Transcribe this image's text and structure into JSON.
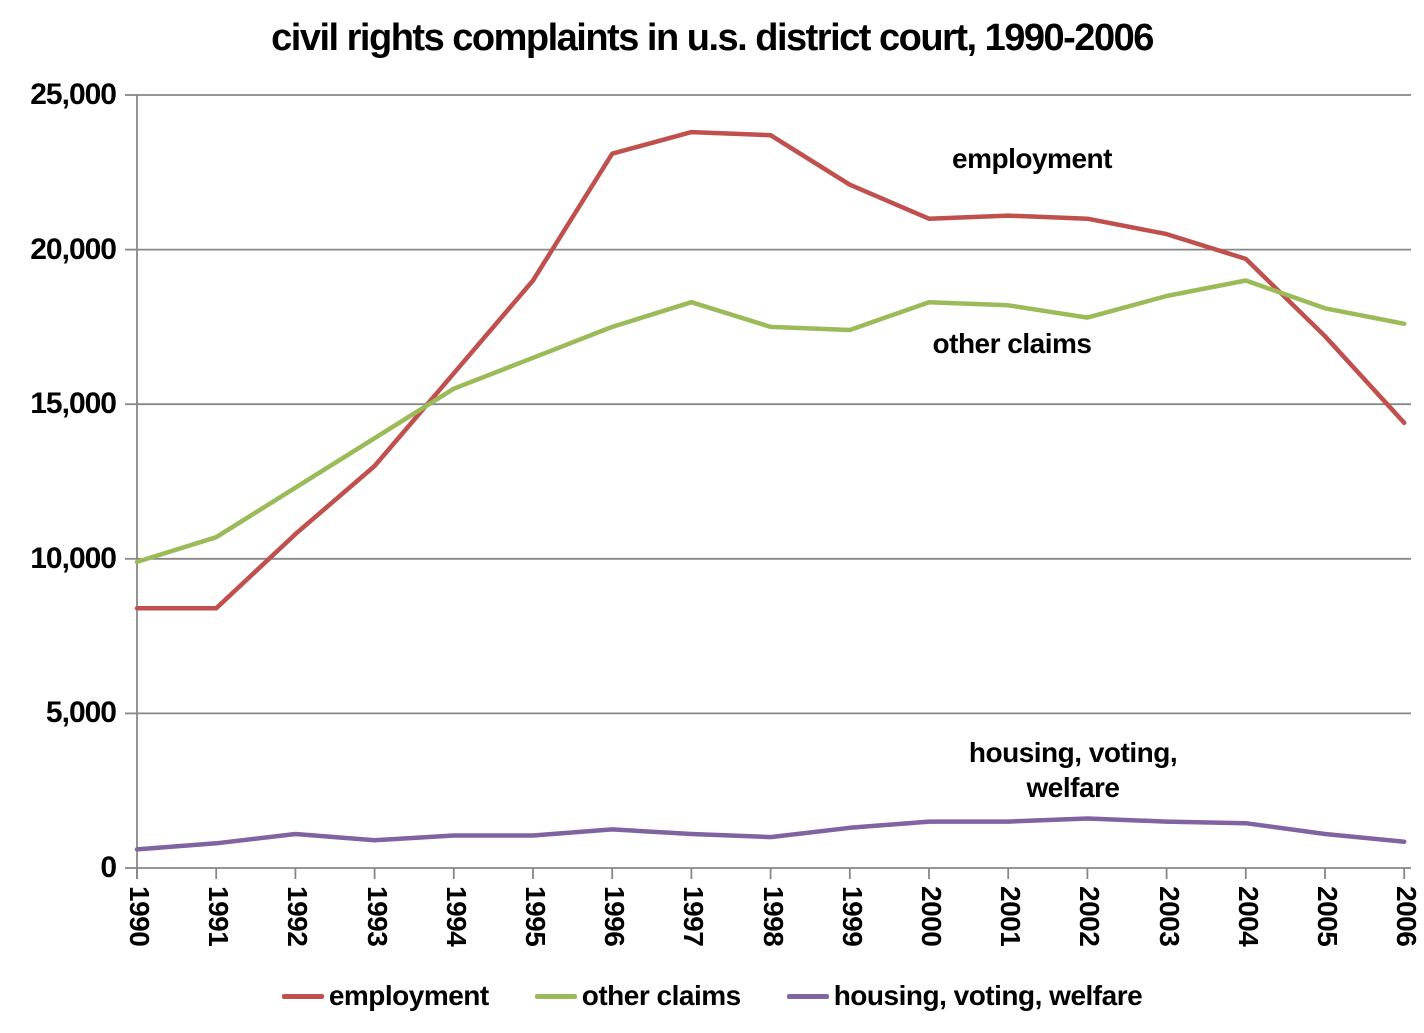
{
  "title": "civil rights complaints in u.s. district court, 1990-2006",
  "chart_data": {
    "type": "line",
    "title": "civil rights complaints in u.s. district court, 1990-2006",
    "categories": [
      "1990",
      "1991",
      "1992",
      "1993",
      "1994",
      "1995",
      "1996",
      "1997",
      "1998",
      "1999",
      "2000",
      "2001",
      "2002",
      "2003",
      "2004",
      "2005",
      "2006"
    ],
    "series": [
      {
        "name": "employment",
        "color": "#c0504d",
        "values": [
          8400,
          8400,
          10800,
          13000,
          16000,
          19000,
          23100,
          23800,
          23700,
          22100,
          21000,
          21100,
          21000,
          20500,
          19700,
          17200,
          14400
        ]
      },
      {
        "name": "other claims",
        "color": "#9bbb59",
        "values": [
          9900,
          10700,
          12300,
          13900,
          15500,
          16500,
          17500,
          18300,
          17500,
          17400,
          18300,
          18200,
          17800,
          18500,
          19000,
          18100,
          17600
        ]
      },
      {
        "name": "housing, voting, welfare",
        "color": "#8064a2",
        "values": [
          600,
          800,
          1100,
          900,
          1050,
          1050,
          1250,
          1100,
          1000,
          1300,
          1500,
          1500,
          1600,
          1500,
          1450,
          1100,
          850
        ]
      }
    ],
    "xlabel": "",
    "ylabel": "",
    "ylim": [
      0,
      25000
    ],
    "y_tick_step": 5000,
    "y_tick_labels": [
      "0",
      "5,000",
      "10,000",
      "15,000",
      "20,000",
      "25,000"
    ],
    "grid": "horizontal",
    "gridline_color": "#878787",
    "legend_position": "bottom",
    "annotations": [
      "employment",
      "other claims",
      "housing, voting, welfare"
    ]
  },
  "labels": {
    "employment": "employment",
    "other_claims": "other claims",
    "housing_line1": "housing, voting,",
    "housing_line2": "welfare"
  }
}
